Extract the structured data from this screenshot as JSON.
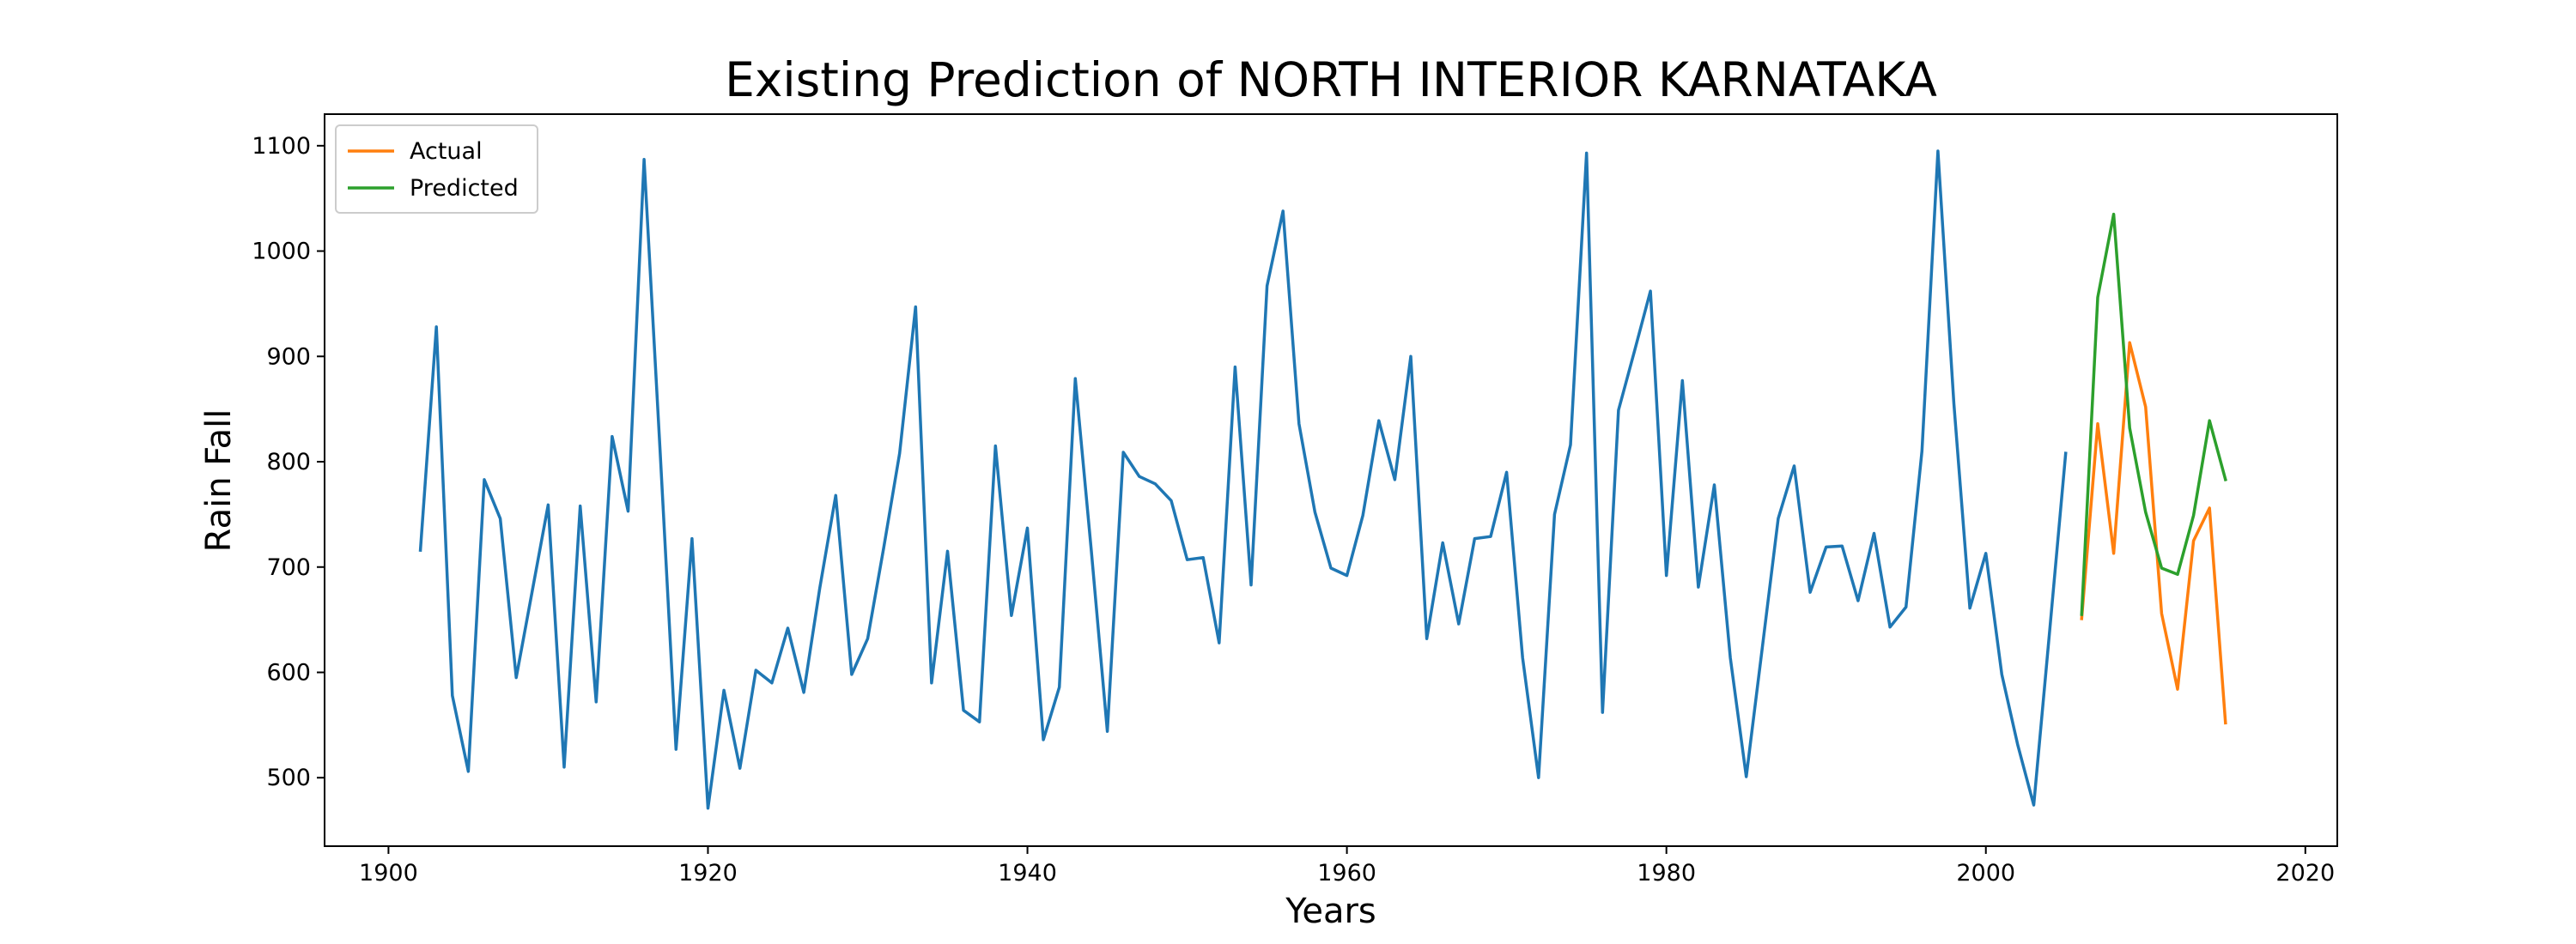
{
  "chart_data": {
    "type": "line",
    "title": "Existing Prediction of NORTH INTERIOR KARNATAKA",
    "xlabel": "Years",
    "ylabel": "Rain Fall",
    "xlim": [
      1896,
      2022
    ],
    "ylim": [
      435,
      1130
    ],
    "x_ticks": [
      1900,
      1920,
      1940,
      1960,
      1980,
      2000,
      2020
    ],
    "y_ticks": [
      500,
      600,
      700,
      800,
      900,
      1000,
      1100
    ],
    "grid": false,
    "legend_position": "top-left",
    "series": [
      {
        "color": "#1f77b4",
        "x": [
          1902,
          1903,
          1904,
          1905,
          1906,
          1907,
          1908,
          1909,
          1910,
          1911,
          1912,
          1913,
          1914,
          1915,
          1916,
          1917,
          1918,
          1919,
          1920,
          1921,
          1922,
          1923,
          1924,
          1925,
          1926,
          1927,
          1928,
          1929,
          1930,
          1931,
          1932,
          1933,
          1934,
          1935,
          1936,
          1937,
          1938,
          1939,
          1940,
          1941,
          1942,
          1943,
          1944,
          1945,
          1946,
          1947,
          1948,
          1949,
          1950,
          1951,
          1952,
          1953,
          1954,
          1955,
          1956,
          1957,
          1958,
          1959,
          1960,
          1961,
          1962,
          1963,
          1964,
          1965,
          1966,
          1967,
          1968,
          1969,
          1970,
          1971,
          1972,
          1973,
          1974,
          1975,
          1976,
          1977,
          1978,
          1979,
          1980,
          1981,
          1982,
          1983,
          1984,
          1985,
          1986,
          1987,
          1988,
          1989,
          1990,
          1991,
          1992,
          1993,
          1994,
          1995,
          1996,
          1997,
          1998,
          1999,
          2000,
          2001,
          2002,
          2003,
          2004,
          2005
        ],
        "values": [
          716,
          928,
          578,
          506,
          783,
          746,
          595,
          677,
          759,
          510,
          758,
          572,
          824,
          753,
          1087,
          811,
          527,
          727,
          471,
          583,
          509,
          602,
          590,
          642,
          581,
          680,
          768,
          598,
          632,
          718,
          808,
          947,
          590,
          715,
          564,
          553,
          815,
          654,
          737,
          536,
          586,
          879,
          715,
          544,
          809,
          786,
          779,
          763,
          707,
          709,
          628,
          890,
          683,
          967,
          1038,
          836,
          752,
          699,
          692,
          749,
          839,
          783,
          900,
          632,
          723,
          646,
          727,
          729,
          790,
          614,
          500,
          750,
          816,
          1093,
          562,
          849,
          905,
          962,
          692,
          877,
          681,
          778,
          614,
          501,
          623,
          746,
          796,
          676,
          719,
          720,
          668,
          732,
          643,
          662,
          810,
          1095,
          855,
          661,
          713,
          598,
          531,
          474,
          640,
          808
        ]
      },
      {
        "name": "Actual",
        "color": "#ff7f0e",
        "x": [
          2006,
          2007,
          2008,
          2009,
          2010,
          2011,
          2012,
          2013,
          2014,
          2015
        ],
        "values": [
          651,
          836,
          713,
          913,
          852,
          656,
          584,
          725,
          756,
          552
        ]
      },
      {
        "name": "Predicted",
        "color": "#2ca02c",
        "x": [
          2006,
          2007,
          2008,
          2009,
          2010,
          2011,
          2012,
          2013,
          2014,
          2015
        ],
        "values": [
          655,
          956,
          1035,
          832,
          752,
          699,
          693,
          749,
          839,
          783
        ]
      }
    ]
  }
}
